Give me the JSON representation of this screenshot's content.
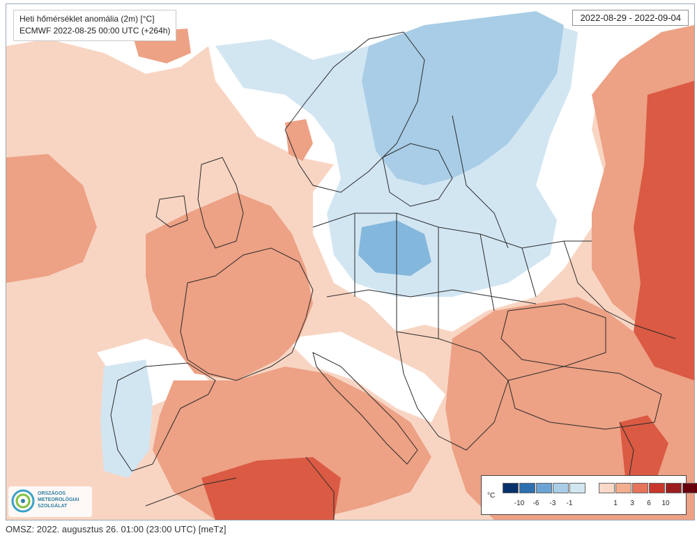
{
  "header": {
    "title": "Heti hőmérséklet anomália (2m) [°C]",
    "subtitle": "ECMWF 2022-08-25 00:00 UTC (+264h)",
    "date_range": "2022-08-29 - 2022-09-04"
  },
  "legend": {
    "unit": "°C",
    "ticks": [
      "-10",
      "-6",
      "-3",
      "-1",
      "1",
      "3",
      "6",
      "10"
    ],
    "colors": {
      "cold_bins": [
        "#08306b",
        "#2e6fb0",
        "#6ba3d3",
        "#a9cde6",
        "#d2e6f2"
      ],
      "warm_bins": [
        "#f9d8c8",
        "#f2ae8e",
        "#e6745a",
        "#c9372c",
        "#9c1d1f",
        "#67000d"
      ]
    }
  },
  "map": {
    "colors": {
      "neutral": "#ffffff",
      "light_warm": "#f8d5c3",
      "warm": "#eda185",
      "hot": "#da5a43",
      "very_hot": "#c4382c",
      "light_cold": "#d2e6f2",
      "cold": "#a9cde6",
      "colder": "#84b7dc",
      "border_line": "#2a2a2a"
    }
  },
  "logo": {
    "lines": [
      "ORSZÁGOS",
      "METEOROLÓGIAI",
      "SZOLGÁLAT"
    ],
    "icon": "omsz-logo-icon"
  },
  "footer": {
    "text": "OMSZ: 2022. augusztus 26. 01:00 (23:00  UTC)  [meTz]"
  }
}
